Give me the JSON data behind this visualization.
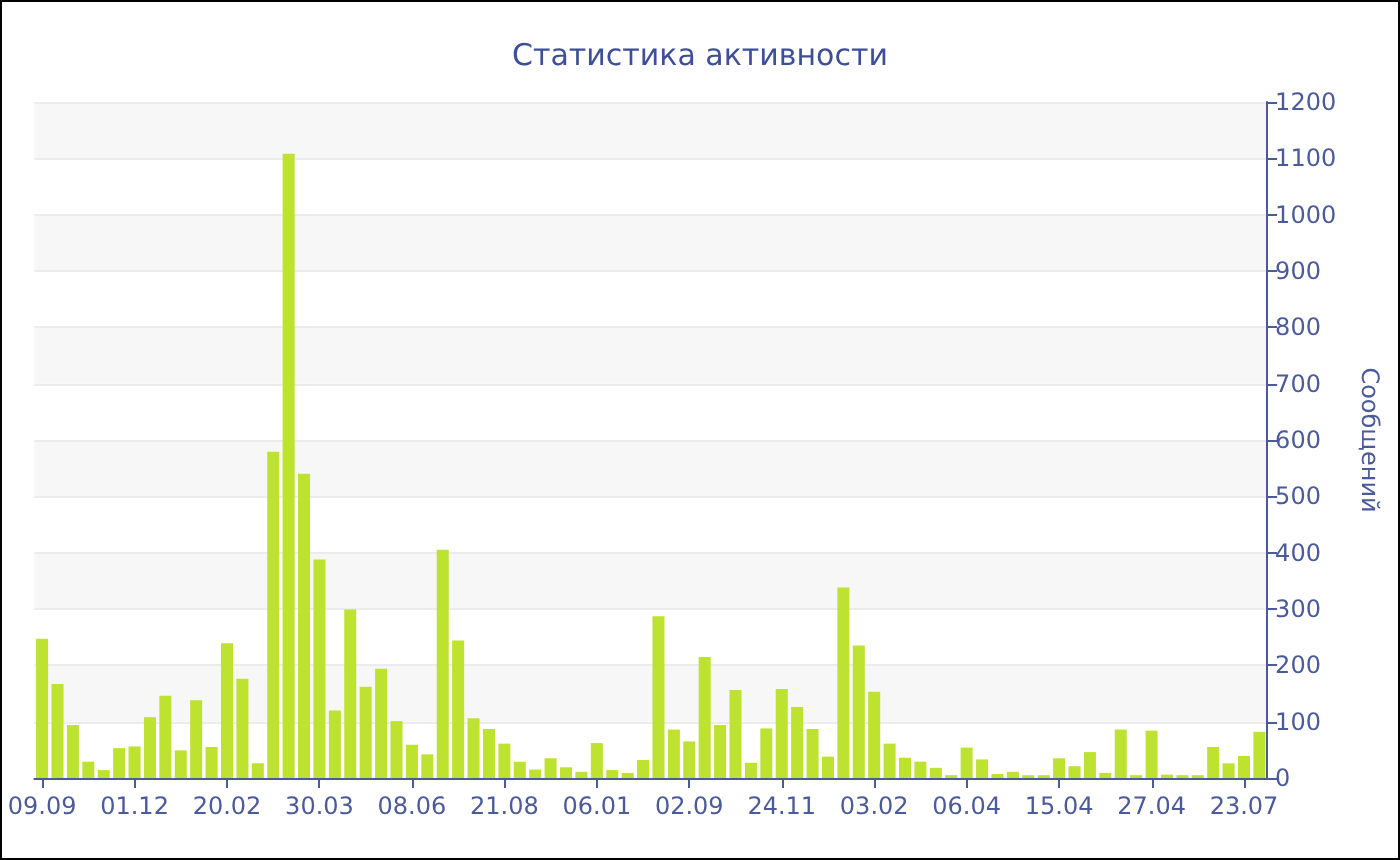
{
  "chart_data": {
    "type": "bar",
    "title": "Статистика активности",
    "ylabel": "Сообщений",
    "categories": [
      "09.09",
      null,
      null,
      null,
      null,
      null,
      "01.12",
      null,
      null,
      null,
      null,
      null,
      "20.02",
      null,
      null,
      null,
      null,
      null,
      "30.03",
      null,
      null,
      null,
      null,
      null,
      "08.06",
      null,
      null,
      null,
      null,
      null,
      "21.08",
      null,
      null,
      null,
      null,
      null,
      "06.01",
      null,
      null,
      null,
      null,
      null,
      "02.09",
      null,
      null,
      null,
      null,
      null,
      "24.11",
      null,
      null,
      null,
      null,
      null,
      "03.02",
      null,
      null,
      null,
      null,
      null,
      "06.04",
      null,
      null,
      null,
      null,
      null,
      "15.04",
      null,
      null,
      null,
      null,
      null,
      "27.04",
      null,
      null,
      null,
      null,
      null,
      "23.07",
      null
    ],
    "values": [
      247,
      167,
      94,
      29,
      14,
      53,
      56,
      108,
      146,
      49,
      138,
      55,
      239,
      176,
      26,
      579,
      1108,
      540,
      388,
      120,
      299,
      162,
      194,
      101,
      59,
      42,
      405,
      244,
      106,
      87,
      61,
      29,
      15,
      35,
      19,
      11,
      62,
      14,
      9,
      32,
      287,
      86,
      65,
      215,
      94,
      156,
      27,
      88,
      158,
      126,
      87,
      38,
      338,
      235,
      153,
      61,
      36,
      29,
      18,
      5,
      54,
      33,
      7,
      11,
      5,
      5,
      35,
      21,
      46,
      9,
      86,
      5,
      84,
      6,
      5,
      5,
      55,
      26,
      39,
      82
    ],
    "color": "#bde22f",
    "ylim": [
      0,
      1200
    ],
    "yticks": [
      0,
      100,
      200,
      300,
      400,
      500,
      600,
      700,
      800,
      900,
      1000,
      1100,
      1200
    ],
    "grid": "y"
  }
}
